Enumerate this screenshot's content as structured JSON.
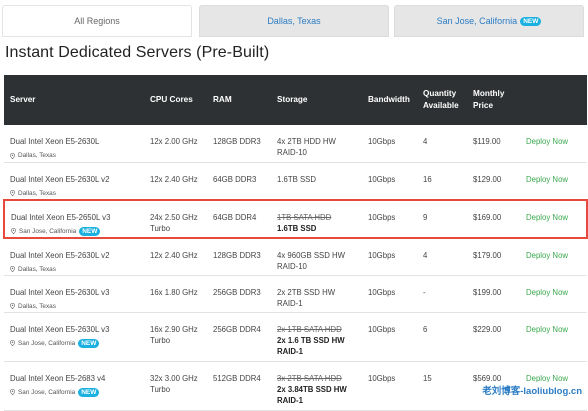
{
  "tabs": [
    {
      "label": "All Regions",
      "active": true,
      "badge": ""
    },
    {
      "label": "Dallas, Texas",
      "active": false,
      "badge": ""
    },
    {
      "label": "San Jose, California",
      "active": false,
      "badge": "NEW"
    }
  ],
  "title": "Instant Dedicated Servers (Pre-Built)",
  "columns": [
    "Server",
    "CPU Cores",
    "RAM",
    "Storage",
    "Bandwidth",
    "Quantity Available",
    "Monthly Price",
    ""
  ],
  "rows": [
    {
      "server": "Dual Intel Xeon E5-2630L",
      "location": "Dallas, Texas",
      "badge": "",
      "cpu": "12x 2.00 GHz",
      "ram": "128GB DDR3",
      "storage_struck": "",
      "storage": "4x 2TB HDD HW RAID-10",
      "storage_bold": false,
      "bandwidth": "10Gbps",
      "qty": "4",
      "price": "$119.00",
      "action": "Deploy Now"
    },
    {
      "server": "Dual Intel Xeon E5-2630L v2",
      "location": "Dallas, Texas",
      "badge": "",
      "cpu": "12x 2.40 GHz",
      "ram": "64GB DDR3",
      "storage_struck": "",
      "storage": "1.6TB SSD",
      "storage_bold": false,
      "bandwidth": "10Gbps",
      "qty": "16",
      "price": "$129.00",
      "action": "Deploy Now"
    },
    {
      "server": "Dual Intel Xeon E5-2650L v3",
      "location": "San Jose, California",
      "badge": "NEW",
      "cpu": "24x 2.50 GHz Turbo",
      "ram": "64GB DDR4",
      "storage_struck": "1TB SATA HDD",
      "storage": "1.6TB SSD",
      "storage_bold": true,
      "bandwidth": "10Gbps",
      "qty": "9",
      "price": "$169.00",
      "action": "Deploy Now"
    },
    {
      "server": "Dual Intel Xeon E5-2630L v2",
      "location": "Dallas, Texas",
      "badge": "",
      "cpu": "12x 2.40 GHz",
      "ram": "128GB DDR3",
      "storage_struck": "",
      "storage": "4x 960GB SSD HW RAID-10",
      "storage_bold": false,
      "bandwidth": "10Gbps",
      "qty": "4",
      "price": "$179.00",
      "action": "Deploy Now"
    },
    {
      "server": "Dual Intel Xeon E5-2630L v3",
      "location": "Dallas, Texas",
      "badge": "",
      "cpu": "16x 1.80 GHz",
      "ram": "256GB DDR3",
      "storage_struck": "",
      "storage": "2x 2TB SSD HW RAID-1",
      "storage_bold": false,
      "bandwidth": "10Gbps",
      "qty": "-",
      "price": "$199.00",
      "action": "Deploy Now"
    },
    {
      "server": "Dual Intel Xeon E5-2630L v3",
      "location": "San Jose, California",
      "badge": "NEW",
      "cpu": "16x 2.90 GHz Turbo",
      "ram": "256GB DDR4",
      "storage_struck": "2x 1TB SATA HDD",
      "storage": "2x 1.6 TB SSD HW RAID-1",
      "storage_bold": true,
      "bandwidth": "10Gbps",
      "qty": "6",
      "price": "$229.00",
      "action": "Deploy Now"
    },
    {
      "server": "Dual Intel Xeon E5-2683 v4",
      "location": "San Jose, California",
      "badge": "NEW",
      "cpu": "32x 3.00 GHz Turbo",
      "ram": "512GB DDR4",
      "storage_struck": "3x 2TB SATA HDD",
      "storage": "2x 3.84TB SSD HW RAID-1",
      "storage_bold": true,
      "bandwidth": "10Gbps",
      "qty": "15",
      "price": "$569.00",
      "action": "Deploy Now"
    }
  ],
  "highlight_row": 2,
  "watermark": "老刘博客-laoliublog.cn",
  "colors": {
    "header_bg": "#2e3133",
    "deploy": "#3aa84f",
    "highlight": "#e64a3c",
    "badge": "#1ab0e0",
    "link": "#2b7cc4"
  }
}
